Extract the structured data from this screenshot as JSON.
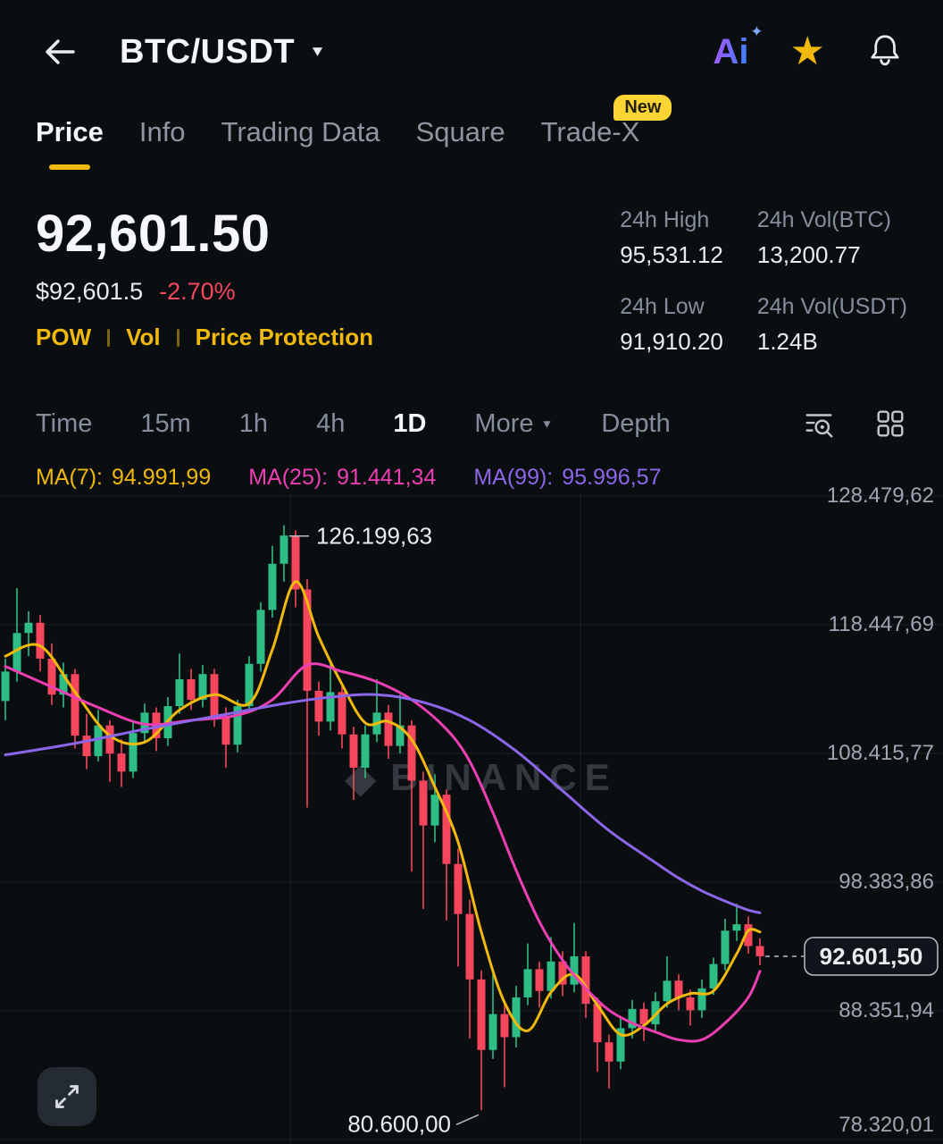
{
  "icons": {
    "caret_down": "▼",
    "more_caret": "▼",
    "star": "★",
    "ai_sparkle": "✦",
    "watermark_logo": "◆"
  },
  "header": {
    "title": "BTC/USDT",
    "ai_label": "Ai"
  },
  "tabs": [
    {
      "label": "Price"
    },
    {
      "label": "Info"
    },
    {
      "label": "Trading Data"
    },
    {
      "label": "Square"
    },
    {
      "label": "Trade-X",
      "badge": "New"
    }
  ],
  "ticker": {
    "last_price": "92,601.50",
    "fiat_price": "$92,601.5",
    "change_pct": "-2.70%",
    "tags": [
      "POW",
      "Vol",
      "Price Protection"
    ],
    "stats": [
      {
        "label": "24h High",
        "value": "95,531.12"
      },
      {
        "label": "24h Vol(BTC)",
        "value": "13,200.77"
      },
      {
        "label": "24h Low",
        "value": "91,910.20"
      },
      {
        "label": "24h Vol(USDT)",
        "value": "1.24B"
      }
    ]
  },
  "timeframes": [
    {
      "label": "Time"
    },
    {
      "label": "15m"
    },
    {
      "label": "1h"
    },
    {
      "label": "4h"
    },
    {
      "label": "1D",
      "active": true
    },
    {
      "label": "More"
    },
    {
      "label": "Depth"
    }
  ],
  "ma_legend": [
    {
      "label": "MA(7):",
      "value": "94.991,99",
      "color": "#F0B90B"
    },
    {
      "label": "MA(25):",
      "value": "91.441,34",
      "color": "#ED3FB4"
    },
    {
      "label": "MA(99):",
      "value": "95.996,57",
      "color": "#8C66E8"
    }
  ],
  "chart_data": {
    "type": "candlestick",
    "pair": "BTC/USDT",
    "interval": "1D",
    "up_color": "#2EBD85",
    "down_color": "#F6465D",
    "grid_color": "rgba(255,255,255,0.07)",
    "y_max": 128479.62,
    "y_min": 78320.01,
    "y_axis_labels": [
      "128.479,62",
      "118.447,69",
      "108.415,77",
      "98.383,86",
      "88.351,94",
      "78.320,01"
    ],
    "v_gridlines": [
      325,
      650
    ],
    "watermark": "BINANCE",
    "annotations": {
      "high": {
        "text": "126.199,63",
        "value": 126199.63,
        "index": 24
      },
      "low": {
        "text": "80.600,00",
        "value": 80600.0,
        "index": 41
      },
      "last": {
        "text": "92.601,50",
        "value": 92601.5
      }
    },
    "candles": [
      [
        112500,
        115800,
        111000,
        114800
      ],
      [
        114800,
        121300,
        114000,
        117800
      ],
      [
        117800,
        119500,
        116000,
        118600
      ],
      [
        118600,
        119200,
        114800,
        115800
      ],
      [
        115800,
        117000,
        112200,
        113000
      ],
      [
        113000,
        115500,
        112000,
        114600
      ],
      [
        114600,
        115000,
        108800,
        109800
      ],
      [
        109800,
        111500,
        107200,
        108200
      ],
      [
        108200,
        111800,
        107800,
        110600
      ],
      [
        110600,
        111000,
        106200,
        108400
      ],
      [
        108400,
        109500,
        105800,
        107000
      ],
      [
        107000,
        110800,
        106500,
        110000
      ],
      [
        110000,
        112300,
        109200,
        111600
      ],
      [
        111600,
        112000,
        108600,
        109600
      ],
      [
        109600,
        112800,
        109000,
        112100
      ],
      [
        112100,
        116200,
        111500,
        114200
      ],
      [
        114200,
        115000,
        111800,
        112600
      ],
      [
        112600,
        115300,
        112000,
        114600
      ],
      [
        114600,
        115000,
        110500,
        111200
      ],
      [
        111200,
        112000,
        107300,
        109100
      ],
      [
        109100,
        112600,
        108500,
        112100
      ],
      [
        112100,
        116000,
        111600,
        115400
      ],
      [
        115400,
        120200,
        114800,
        119600
      ],
      [
        119600,
        124600,
        119000,
        123200
      ],
      [
        123200,
        126199.63,
        121800,
        125400
      ],
      [
        125400,
        125800,
        119800,
        121200
      ],
      [
        121200,
        122000,
        104200,
        113300
      ],
      [
        113300,
        114000,
        109800,
        110900
      ],
      [
        110900,
        115400,
        110200,
        113200
      ],
      [
        113200,
        113800,
        108800,
        109900
      ],
      [
        109900,
        110500,
        104800,
        107300
      ],
      [
        107300,
        110600,
        106500,
        109900
      ],
      [
        109900,
        114200,
        109300,
        111600
      ],
      [
        111600,
        112200,
        108000,
        109000
      ],
      [
        109000,
        113000,
        108400,
        110600
      ],
      [
        110600,
        111000,
        99200,
        106300
      ],
      [
        106300,
        107000,
        96300,
        102800
      ],
      [
        102800,
        106800,
        101500,
        105200
      ],
      [
        105200,
        105600,
        95400,
        99800
      ],
      [
        99800,
        101000,
        91800,
        95900
      ],
      [
        95900,
        97000,
        86200,
        90800
      ],
      [
        90800,
        91500,
        80600,
        85300
      ],
      [
        85300,
        91200,
        84600,
        88100
      ],
      [
        88100,
        89000,
        82400,
        86300
      ],
      [
        86300,
        90300,
        85500,
        89400
      ],
      [
        89400,
        93600,
        88800,
        91600
      ],
      [
        91600,
        92200,
        88600,
        89900
      ],
      [
        89900,
        94100,
        89300,
        92200
      ],
      [
        92200,
        93000,
        89500,
        90400
      ],
      [
        90400,
        95200,
        89800,
        92600
      ],
      [
        92600,
        93000,
        87800,
        88900
      ],
      [
        88900,
        89400,
        83600,
        85900
      ],
      [
        85900,
        86500,
        82300,
        84400
      ],
      [
        84400,
        87800,
        83800,
        87000
      ],
      [
        87000,
        89200,
        86200,
        88500
      ],
      [
        88500,
        89000,
        86000,
        87300
      ],
      [
        87300,
        89800,
        86800,
        89100
      ],
      [
        89100,
        92600,
        88600,
        90700
      ],
      [
        90700,
        91200,
        88400,
        89400
      ],
      [
        89400,
        90000,
        87200,
        88400
      ],
      [
        88400,
        90800,
        87800,
        90100
      ],
      [
        90100,
        92500,
        89600,
        92000
      ],
      [
        92000,
        95531.12,
        91500,
        94600
      ],
      [
        94600,
        96700,
        93800,
        95100
      ],
      [
        95100,
        95700,
        92800,
        93400
      ],
      [
        93400,
        94000,
        91910.2,
        92601.5
      ]
    ],
    "ma_lines": [
      {
        "name": "MA7",
        "color": "#F0B90B",
        "points": [
          [
            0,
            116000
          ],
          [
            3,
            116800
          ],
          [
            6,
            113200
          ],
          [
            9,
            109800
          ],
          [
            12,
            109300
          ],
          [
            15,
            111800
          ],
          [
            18,
            113000
          ],
          [
            21,
            112300
          ],
          [
            23,
            116500
          ],
          [
            25,
            121800
          ],
          [
            27,
            117500
          ],
          [
            29,
            113800
          ],
          [
            31,
            110800
          ],
          [
            33,
            110900
          ],
          [
            35,
            109500
          ],
          [
            37,
            105800
          ],
          [
            39,
            101500
          ],
          [
            41,
            94500
          ],
          [
            43,
            89000
          ],
          [
            45,
            86800
          ],
          [
            47,
            89800
          ],
          [
            49,
            91200
          ],
          [
            51,
            88800
          ],
          [
            53,
            86500
          ],
          [
            55,
            87200
          ],
          [
            57,
            88900
          ],
          [
            59,
            89700
          ],
          [
            61,
            89900
          ],
          [
            63,
            92800
          ],
          [
            64,
            94600
          ],
          [
            65,
            94500
          ]
        ]
      },
      {
        "name": "MA25",
        "color": "#ED3FB4",
        "points": [
          [
            0,
            115200
          ],
          [
            4,
            113600
          ],
          [
            8,
            112000
          ],
          [
            12,
            110700
          ],
          [
            16,
            111000
          ],
          [
            20,
            111400
          ],
          [
            23,
            112600
          ],
          [
            26,
            115300
          ],
          [
            29,
            114800
          ],
          [
            32,
            114000
          ],
          [
            35,
            112600
          ],
          [
            38,
            110300
          ],
          [
            40,
            107800
          ],
          [
            42,
            103800
          ],
          [
            44,
            99300
          ],
          [
            46,
            95300
          ],
          [
            48,
            92300
          ],
          [
            50,
            90100
          ],
          [
            52,
            88400
          ],
          [
            54,
            87400
          ],
          [
            56,
            86700
          ],
          [
            58,
            86100
          ],
          [
            60,
            86100
          ],
          [
            62,
            87400
          ],
          [
            64,
            89400
          ],
          [
            65,
            91440
          ]
        ]
      },
      {
        "name": "MA99",
        "color": "#8C66E8",
        "points": [
          [
            0,
            108300
          ],
          [
            6,
            109200
          ],
          [
            12,
            110300
          ],
          [
            18,
            111300
          ],
          [
            24,
            112300
          ],
          [
            28,
            112800
          ],
          [
            32,
            113000
          ],
          [
            36,
            112400
          ],
          [
            40,
            111000
          ],
          [
            44,
            108600
          ],
          [
            48,
            105500
          ],
          [
            52,
            102400
          ],
          [
            56,
            99900
          ],
          [
            58,
            98700
          ],
          [
            60,
            97700
          ],
          [
            62,
            96900
          ],
          [
            64,
            96200
          ],
          [
            65,
            95996
          ]
        ]
      }
    ]
  }
}
